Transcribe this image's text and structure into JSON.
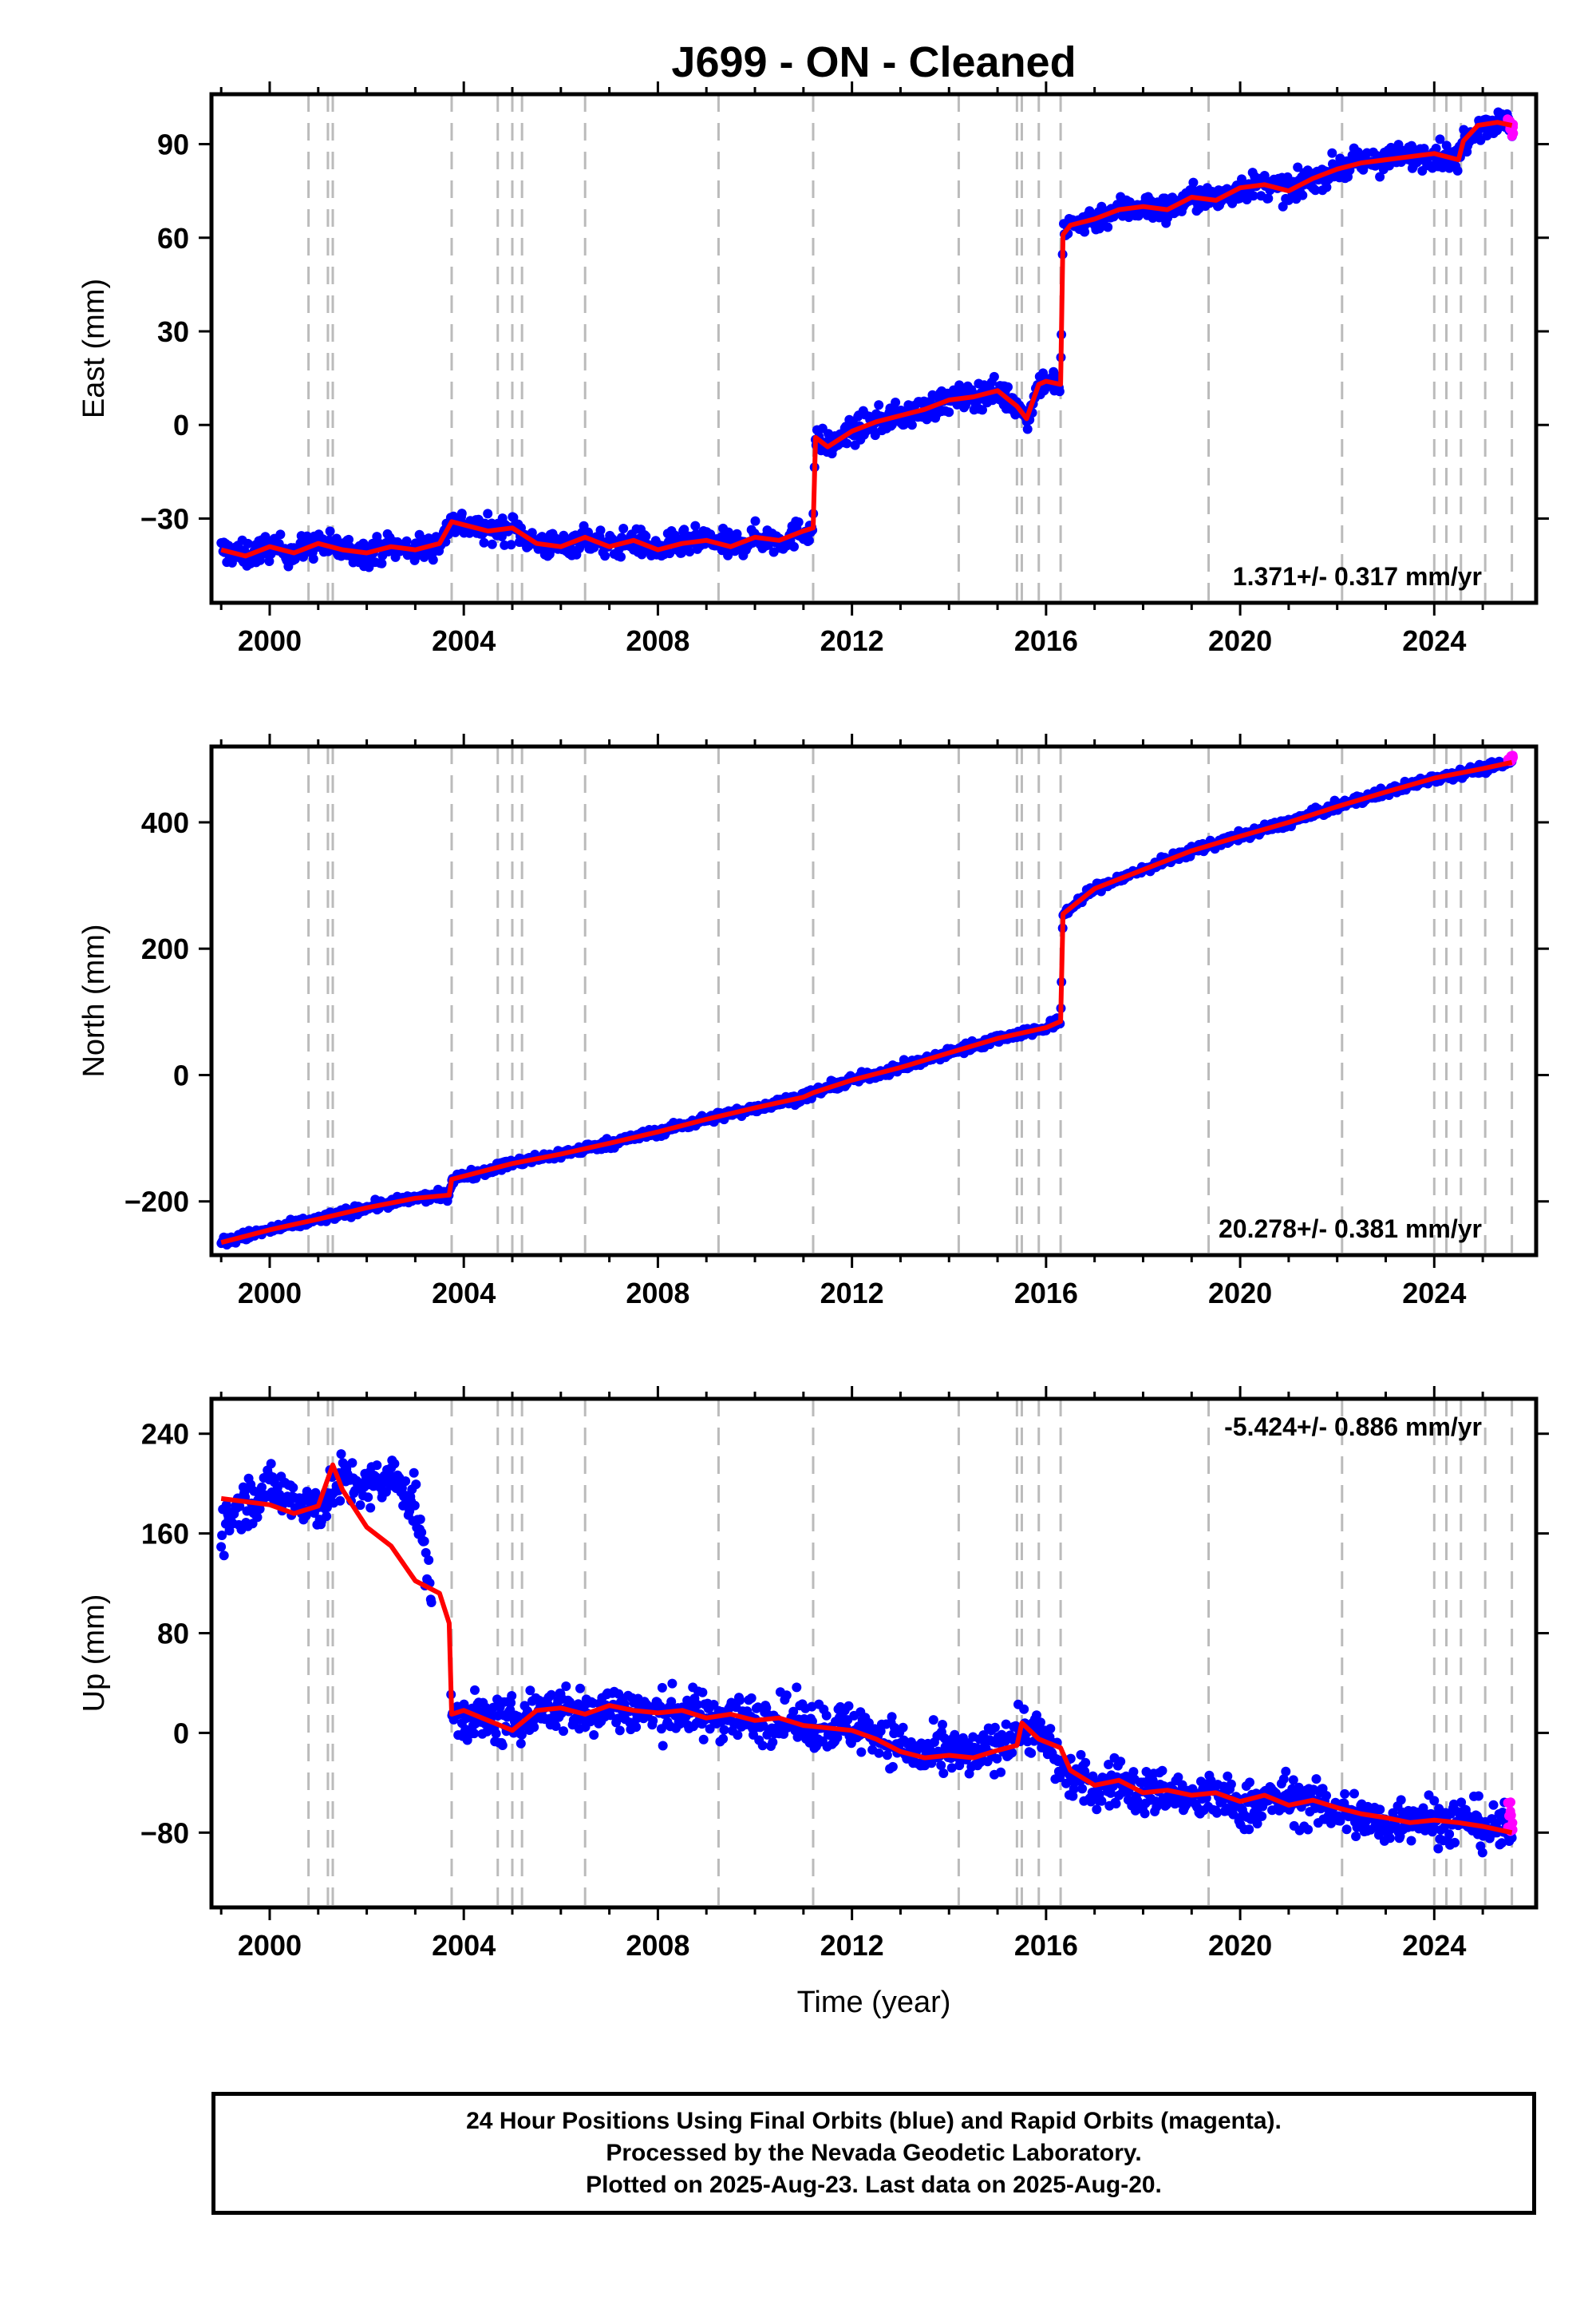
{
  "title": "J699  - ON - Cleaned",
  "colors": {
    "final_orbits": "#0000ff",
    "rapid_orbits": "#ff00ff",
    "model": "#ff0000",
    "event_lines": "#bbbbbb",
    "frame": "#000000"
  },
  "xaxis": {
    "label": "Time (year)",
    "range": [
      1998.8,
      2026.1
    ],
    "ticks": [
      "2000",
      "2004",
      "2008",
      "2012",
      "2016",
      "2020",
      "2024"
    ],
    "tick_values": [
      2000,
      2004,
      2008,
      2012,
      2016,
      2020,
      2024
    ]
  },
  "event_lines": [
    2000.8,
    2001.2,
    2001.3,
    2003.75,
    2004.7,
    2005.0,
    2005.2,
    2006.5,
    2009.25,
    2011.2,
    2014.2,
    2015.4,
    2015.5,
    2015.85,
    2016.3,
    2019.35,
    2022.1,
    2024.0,
    2024.25,
    2024.55,
    2025.05,
    2025.6
  ],
  "caption": {
    "line1": "24 Hour Positions Using Final Orbits (blue) and Rapid Orbits (magenta).",
    "line2": "Processed by the Nevada Geodetic Laboratory.",
    "line3": "Plotted on 2025-Aug-23. Last data on 2025-Aug-20."
  },
  "chart_data": [
    {
      "type": "scatter",
      "ylabel": "East (mm)",
      "ylim": [
        -57,
        106
      ],
      "yticks": [
        "90",
        "60",
        "30",
        "0",
        "−30"
      ],
      "ytick_values": [
        90,
        60,
        30,
        0,
        -30
      ],
      "rate": "1.371+/- 0.317 mm/yr",
      "rate_position": "bottom-right",
      "points_x": [
        1999.0,
        1999.5,
        2000.0,
        2000.5,
        2001.0,
        2001.5,
        2002.0,
        2002.5,
        2003.0,
        2003.5,
        2003.75,
        2004.0,
        2004.5,
        2005.0,
        2005.5,
        2006.0,
        2006.5,
        2007.0,
        2007.5,
        2008.0,
        2008.5,
        2009.0,
        2009.5,
        2010.0,
        2010.5,
        2011.0,
        2011.2,
        2011.25,
        2011.5,
        2012.0,
        2012.5,
        2013.0,
        2013.5,
        2014.0,
        2014.5,
        2015.0,
        2015.4,
        2015.6,
        2015.85,
        2016.0,
        2016.3,
        2016.35,
        2016.5,
        2017.0,
        2017.5,
        2018.0,
        2018.5,
        2019.0,
        2019.5,
        2020.0,
        2020.5,
        2021.0,
        2021.5,
        2022.0,
        2022.5,
        2023.0,
        2023.5,
        2024.0,
        2024.5,
        2024.6,
        2024.9,
        2025.3,
        2025.6
      ],
      "points_y": [
        -40,
        -42,
        -39,
        -41,
        -38,
        -40,
        -41,
        -39,
        -40,
        -38,
        -31,
        -32,
        -34,
        -33,
        -38,
        -39,
        -36,
        -39,
        -37,
        -40,
        -38,
        -37,
        -39,
        -36,
        -37,
        -34,
        -33,
        -4,
        -7,
        -2,
        1,
        3,
        5,
        8,
        9,
        11,
        6,
        2,
        13,
        14,
        13,
        61,
        64,
        66,
        69,
        70,
        69,
        73,
        72,
        76,
        77,
        75,
        79,
        82,
        84,
        85,
        86,
        87,
        85,
        91,
        96,
        97,
        96
      ],
      "model_x": [
        1999.0,
        1999.5,
        2000.0,
        2000.5,
        2001.0,
        2001.5,
        2002.0,
        2002.5,
        2003.0,
        2003.5,
        2003.75,
        2004.0,
        2004.5,
        2005.0,
        2005.5,
        2006.0,
        2006.5,
        2007.0,
        2007.5,
        2008.0,
        2008.5,
        2009.0,
        2009.5,
        2010.0,
        2010.5,
        2011.0,
        2011.2,
        2011.25,
        2011.5,
        2012.0,
        2012.5,
        2013.0,
        2013.5,
        2014.0,
        2014.5,
        2015.0,
        2015.4,
        2015.6,
        2015.85,
        2016.0,
        2016.3,
        2016.35,
        2016.5,
        2017.0,
        2017.5,
        2018.0,
        2018.5,
        2019.0,
        2019.5,
        2020.0,
        2020.5,
        2021.0,
        2021.5,
        2022.0,
        2022.5,
        2023.0,
        2023.5,
        2024.0,
        2024.5,
        2024.6,
        2024.9,
        2025.3,
        2025.6
      ],
      "model_y": [
        -40,
        -42,
        -39,
        -41,
        -38,
        -40,
        -41,
        -39,
        -40,
        -38,
        -31,
        -32,
        -34,
        -33,
        -38,
        -39,
        -36,
        -39,
        -37,
        -40,
        -38,
        -37,
        -39,
        -36,
        -37,
        -34,
        -33,
        -4,
        -7,
        -2,
        1,
        3,
        5,
        8,
        9,
        11,
        6,
        2,
        13,
        14,
        13,
        61,
        64,
        66,
        69,
        70,
        69,
        73,
        72,
        76,
        77,
        75,
        79,
        82,
        84,
        85,
        86,
        87,
        85,
        91,
        96,
        97,
        96
      ],
      "spread": 4,
      "rapid_x": [
        2025.55,
        2025.6
      ],
      "rapid_y": [
        97,
        95
      ]
    },
    {
      "type": "scatter",
      "ylabel": "North (mm)",
      "ylim": [
        -285,
        520
      ],
      "yticks": [
        "400",
        "200",
        "0",
        "−200"
      ],
      "ytick_values": [
        400,
        200,
        0,
        -200
      ],
      "rate": "20.278+/- 0.381 mm/yr",
      "rate_position": "bottom-right",
      "points_x": [
        1999.0,
        1999.5,
        2000.0,
        2001.0,
        2002.0,
        2003.0,
        2003.7,
        2003.75,
        2004.0,
        2005.0,
        2006.0,
        2007.0,
        2008.0,
        2009.0,
        2010.0,
        2011.0,
        2011.2,
        2012.0,
        2013.0,
        2014.0,
        2015.0,
        2016.0,
        2016.3,
        2016.35,
        2017.0,
        2018.0,
        2019.0,
        2020.0,
        2021.0,
        2022.0,
        2023.0,
        2024.0,
        2025.0,
        2025.6
      ],
      "points_y": [
        -265,
        -255,
        -245,
        -228,
        -210,
        -195,
        -190,
        -165,
        -160,
        -140,
        -125,
        -108,
        -90,
        -70,
        -52,
        -35,
        -28,
        -8,
        12,
        35,
        58,
        75,
        85,
        255,
        295,
        325,
        355,
        378,
        400,
        425,
        448,
        470,
        485,
        495
      ],
      "model_x": [
        1999.0,
        1999.5,
        2000.0,
        2001.0,
        2002.0,
        2003.0,
        2003.7,
        2003.75,
        2004.0,
        2005.0,
        2006.0,
        2007.0,
        2008.0,
        2009.0,
        2010.0,
        2011.0,
        2011.2,
        2012.0,
        2013.0,
        2014.0,
        2015.0,
        2016.0,
        2016.3,
        2016.35,
        2017.0,
        2018.0,
        2019.0,
        2020.0,
        2021.0,
        2022.0,
        2023.0,
        2024.0,
        2025.0,
        2025.6
      ],
      "model_y": [
        -265,
        -255,
        -245,
        -228,
        -210,
        -195,
        -190,
        -165,
        -160,
        -140,
        -125,
        -108,
        -90,
        -70,
        -52,
        -35,
        -28,
        -8,
        12,
        35,
        58,
        75,
        85,
        255,
        295,
        325,
        355,
        378,
        400,
        425,
        448,
        470,
        485,
        495
      ],
      "spread": 7,
      "rapid_x": [
        2025.55,
        2025.6
      ],
      "rapid_y": [
        498,
        505
      ]
    },
    {
      "type": "scatter",
      "ylabel": "Up (mm)",
      "ylim": [
        -140,
        268
      ],
      "yticks": [
        "240",
        "160",
        "80",
        "0",
        "−80"
      ],
      "ytick_values": [
        240,
        160,
        80,
        0,
        -80
      ],
      "rate": "-5.424+/- 0.886 mm/yr",
      "rate_position": "top-right",
      "points_x": [
        1999.0,
        1999.5,
        2000.0,
        2000.5,
        2001.0,
        2001.5,
        2002.0,
        2002.5,
        2003.0,
        2003.75,
        2004.0,
        2004.5,
        2005.0,
        2005.5,
        2006.0,
        2006.5,
        2007.0,
        2007.5,
        2008.0,
        2008.5,
        2009.0,
        2009.5,
        2010.0,
        2010.5,
        2011.0,
        2011.5,
        2012.0,
        2012.5,
        2013.0,
        2013.5,
        2014.0,
        2014.5,
        2015.0,
        2015.5,
        2015.85,
        2016.3,
        2016.5,
        2017.0,
        2017.5,
        2018.0,
        2018.5,
        2019.0,
        2019.5,
        2020.0,
        2020.5,
        2021.0,
        2021.5,
        2022.0,
        2022.5,
        2023.0,
        2023.5,
        2024.0,
        2024.5,
        2024.6,
        2025.0,
        2025.6
      ],
      "points_y": [
        165,
        185,
        195,
        190,
        180,
        205,
        195,
        205,
        185,
        15,
        12,
        10,
        8,
        18,
        20,
        15,
        22,
        18,
        15,
        18,
        12,
        15,
        10,
        12,
        8,
        5,
        5,
        0,
        -10,
        -20,
        -15,
        -20,
        -10,
        5,
        0,
        -25,
        -35,
        -45,
        -38,
        -50,
        -45,
        -55,
        -50,
        -60,
        -55,
        -52,
        -58,
        -62,
        -68,
        -75,
        -65,
        -70,
        -72,
        -68,
        -75,
        -80
      ],
      "model_x": [
        1999.0,
        2000.0,
        2000.5,
        2001.0,
        2001.3,
        2001.5,
        2002.0,
        2002.5,
        2003.0,
        2003.5,
        2003.7,
        2003.75,
        2004.0,
        2004.5,
        2005.0,
        2005.5,
        2006.0,
        2006.5,
        2007.0,
        2007.5,
        2008.0,
        2008.5,
        2009.0,
        2009.5,
        2010.0,
        2010.5,
        2011.0,
        2011.5,
        2012.0,
        2012.5,
        2013.0,
        2013.5,
        2014.0,
        2014.5,
        2015.0,
        2015.4,
        2015.5,
        2015.85,
        2016.3,
        2016.5,
        2017.0,
        2017.5,
        2018.0,
        2018.5,
        2019.0,
        2019.5,
        2020.0,
        2020.5,
        2021.0,
        2021.5,
        2022.0,
        2022.5,
        2023.0,
        2023.5,
        2024.0,
        2024.5,
        2025.0,
        2025.6
      ],
      "model_y": [
        188,
        183,
        176,
        182,
        215,
        195,
        165,
        150,
        122,
        112,
        88,
        15,
        18,
        10,
        2,
        18,
        20,
        15,
        22,
        18,
        16,
        18,
        12,
        15,
        10,
        12,
        6,
        4,
        2,
        -5,
        -15,
        -20,
        -18,
        -20,
        -14,
        -10,
        8,
        -5,
        -12,
        -30,
        -42,
        -38,
        -48,
        -46,
        -50,
        -48,
        -55,
        -50,
        -58,
        -54,
        -60,
        -65,
        -68,
        -72,
        -70,
        -72,
        -75,
        -80
      ],
      "spread": 18,
      "rapid_x": [
        2025.55,
        2025.6
      ],
      "rapid_y": [
        -62,
        -70
      ]
    }
  ]
}
